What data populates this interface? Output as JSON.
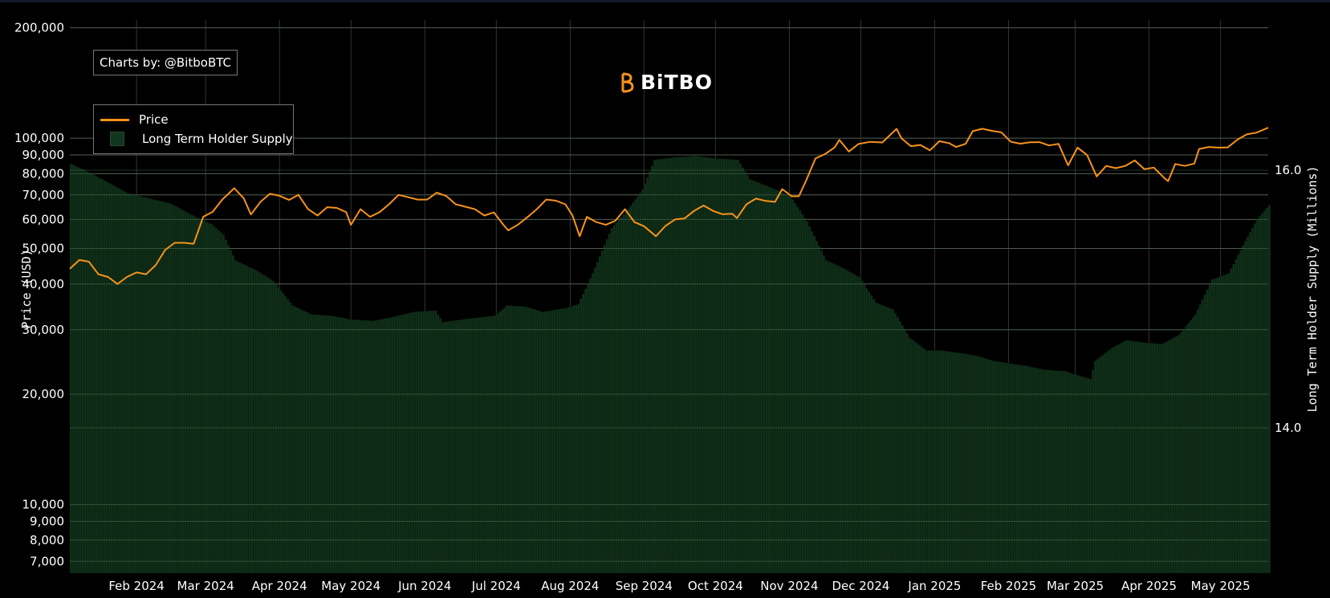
{
  "credit": "Charts by: @BitboBTC",
  "logo": {
    "text": "BiTBO",
    "color": "#f7931a"
  },
  "legend": {
    "price": "Price",
    "supply": "Long Term Holder Supply"
  },
  "colors": {
    "price": "#f7931a",
    "supply_fill": "#0f2e18",
    "grid": "#3a3a3a"
  },
  "chart_data": {
    "type": "line",
    "x_start": "2024-01-04",
    "x_end": "2025-05-21",
    "y_left": {
      "title": "Price (USD)",
      "scale": "log",
      "range": [
        6500,
        210000
      ],
      "ticks": [
        7000,
        8000,
        9000,
        10000,
        20000,
        30000,
        40000,
        50000,
        60000,
        70000,
        80000,
        90000,
        100000,
        200000
      ],
      "tick_labels": [
        "7,000",
        "8,000",
        "9,000",
        "10,000",
        "20,000",
        "30,000",
        "40,000",
        "50,000",
        "60,000",
        "70,000",
        "80,000",
        "90,000",
        "100,000",
        "200,000"
      ]
    },
    "y_right": {
      "title": "Long Term Holder Supply (Millions)",
      "ticks": [
        14.0,
        16.0
      ],
      "tick_labels": [
        "14.0",
        "16.0"
      ]
    },
    "x_ticks": [
      {
        "date": "2024-02-01",
        "label": "Feb 2024"
      },
      {
        "date": "2024-03-01",
        "label": "Mar 2024"
      },
      {
        "date": "2024-04-01",
        "label": "Apr 2024"
      },
      {
        "date": "2024-05-01",
        "label": "May 2024"
      },
      {
        "date": "2024-06-01",
        "label": "Jun 2024"
      },
      {
        "date": "2024-07-01",
        "label": "Jul 2024"
      },
      {
        "date": "2024-08-01",
        "label": "Aug 2024"
      },
      {
        "date": "2024-09-01",
        "label": "Sep 2024"
      },
      {
        "date": "2024-10-01",
        "label": "Oct 2024"
      },
      {
        "date": "2024-11-01",
        "label": "Nov 2024"
      },
      {
        "date": "2024-12-01",
        "label": "Dec 2024"
      },
      {
        "date": "2025-01-01",
        "label": "Jan 2025"
      },
      {
        "date": "2025-02-01",
        "label": "Feb 2025"
      },
      {
        "date": "2025-03-01",
        "label": "Mar 2025"
      },
      {
        "date": "2025-04-01",
        "label": "Apr 2025"
      },
      {
        "date": "2025-05-01",
        "label": "May 2025"
      }
    ],
    "series": [
      {
        "name": "Price",
        "type": "line",
        "points": [
          [
            "2024-01-04",
            44000
          ],
          [
            "2024-01-08",
            46500
          ],
          [
            "2024-01-12",
            46000
          ],
          [
            "2024-01-16",
            42500
          ],
          [
            "2024-01-20",
            41800
          ],
          [
            "2024-01-24",
            40000
          ],
          [
            "2024-01-28",
            41800
          ],
          [
            "2024-02-01",
            43000
          ],
          [
            "2024-02-05",
            42500
          ],
          [
            "2024-02-09",
            45000
          ],
          [
            "2024-02-13",
            49500
          ],
          [
            "2024-02-17",
            51800
          ],
          [
            "2024-02-21",
            51800
          ],
          [
            "2024-02-25",
            51500
          ],
          [
            "2024-02-29",
            61000
          ],
          [
            "2024-03-04",
            63000
          ],
          [
            "2024-03-08",
            68000
          ],
          [
            "2024-03-13",
            73000
          ],
          [
            "2024-03-17",
            68500
          ],
          [
            "2024-03-20",
            61900
          ],
          [
            "2024-03-24",
            67000
          ],
          [
            "2024-03-28",
            70500
          ],
          [
            "2024-04-01",
            69600
          ],
          [
            "2024-04-05",
            67800
          ],
          [
            "2024-04-09",
            70000
          ],
          [
            "2024-04-13",
            64000
          ],
          [
            "2024-04-17",
            61500
          ],
          [
            "2024-04-21",
            64800
          ],
          [
            "2024-04-25",
            64500
          ],
          [
            "2024-04-29",
            62800
          ],
          [
            "2024-05-01",
            58000
          ],
          [
            "2024-05-05",
            64000
          ],
          [
            "2024-05-09",
            61000
          ],
          [
            "2024-05-13",
            62800
          ],
          [
            "2024-05-17",
            66000
          ],
          [
            "2024-05-21",
            70000
          ],
          [
            "2024-05-25",
            69000
          ],
          [
            "2024-05-29",
            68000
          ],
          [
            "2024-06-02",
            68000
          ],
          [
            "2024-06-06",
            71000
          ],
          [
            "2024-06-10",
            69500
          ],
          [
            "2024-06-14",
            66000
          ],
          [
            "2024-06-18",
            65000
          ],
          [
            "2024-06-22",
            64000
          ],
          [
            "2024-06-26",
            61500
          ],
          [
            "2024-06-30",
            62700
          ],
          [
            "2024-07-04",
            58000
          ],
          [
            "2024-07-06",
            56000
          ],
          [
            "2024-07-10",
            58000
          ],
          [
            "2024-07-14",
            60800
          ],
          [
            "2024-07-18",
            64000
          ],
          [
            "2024-07-22",
            68000
          ],
          [
            "2024-07-26",
            67500
          ],
          [
            "2024-07-30",
            66000
          ],
          [
            "2024-08-02",
            61500
          ],
          [
            "2024-08-05",
            54000
          ],
          [
            "2024-08-08",
            61000
          ],
          [
            "2024-08-12",
            59000
          ],
          [
            "2024-08-16",
            58000
          ],
          [
            "2024-08-20",
            59500
          ],
          [
            "2024-08-24",
            64000
          ],
          [
            "2024-08-28",
            59000
          ],
          [
            "2024-09-01",
            57500
          ],
          [
            "2024-09-06",
            54000
          ],
          [
            "2024-09-10",
            57600
          ],
          [
            "2024-09-14",
            60000
          ],
          [
            "2024-09-18",
            60400
          ],
          [
            "2024-09-22",
            63300
          ],
          [
            "2024-09-26",
            65500
          ],
          [
            "2024-09-30",
            63300
          ],
          [
            "2024-10-04",
            62000
          ],
          [
            "2024-10-08",
            62200
          ],
          [
            "2024-10-10",
            60500
          ],
          [
            "2024-10-14",
            66000
          ],
          [
            "2024-10-18",
            68400
          ],
          [
            "2024-10-22",
            67400
          ],
          [
            "2024-10-26",
            67000
          ],
          [
            "2024-10-29",
            72600
          ],
          [
            "2024-11-02",
            69400
          ],
          [
            "2024-11-05",
            69400
          ],
          [
            "2024-11-08",
            76500
          ],
          [
            "2024-11-12",
            88000
          ],
          [
            "2024-11-16",
            90500
          ],
          [
            "2024-11-20",
            94300
          ],
          [
            "2024-11-22",
            98900
          ],
          [
            "2024-11-26",
            91900
          ],
          [
            "2024-11-30",
            96400
          ],
          [
            "2024-12-05",
            97700
          ],
          [
            "2024-12-10",
            97300
          ],
          [
            "2024-12-16",
            106000
          ],
          [
            "2024-12-18",
            100000
          ],
          [
            "2024-12-22",
            95100
          ],
          [
            "2024-12-26",
            95800
          ],
          [
            "2024-12-30",
            92600
          ],
          [
            "2025-01-03",
            98100
          ],
          [
            "2025-01-07",
            96900
          ],
          [
            "2025-01-10",
            94600
          ],
          [
            "2025-01-14",
            96500
          ],
          [
            "2025-01-17",
            104500
          ],
          [
            "2025-01-21",
            106100
          ],
          [
            "2025-01-25",
            104700
          ],
          [
            "2025-01-29",
            103700
          ],
          [
            "2025-02-02",
            97700
          ],
          [
            "2025-02-06",
            96600
          ],
          [
            "2025-02-10",
            97400
          ],
          [
            "2025-02-14",
            97500
          ],
          [
            "2025-02-18",
            95500
          ],
          [
            "2025-02-22",
            96500
          ],
          [
            "2025-02-26",
            84300
          ],
          [
            "2025-03-02",
            94200
          ],
          [
            "2025-03-06",
            89900
          ],
          [
            "2025-03-10",
            78600
          ],
          [
            "2025-03-14",
            84000
          ],
          [
            "2025-03-18",
            82800
          ],
          [
            "2025-03-22",
            84000
          ],
          [
            "2025-03-26",
            86900
          ],
          [
            "2025-03-30",
            82300
          ],
          [
            "2025-04-03",
            83100
          ],
          [
            "2025-04-07",
            78300
          ],
          [
            "2025-04-09",
            76300
          ],
          [
            "2025-04-12",
            85000
          ],
          [
            "2025-04-16",
            84000
          ],
          [
            "2025-04-20",
            85200
          ],
          [
            "2025-04-22",
            93400
          ],
          [
            "2025-04-26",
            94600
          ],
          [
            "2025-04-30",
            94200
          ],
          [
            "2025-05-04",
            94300
          ],
          [
            "2025-05-08",
            99000
          ],
          [
            "2025-05-12",
            102400
          ],
          [
            "2025-05-16",
            103500
          ],
          [
            "2025-05-21",
            106800
          ]
        ]
      },
      {
        "name": "Long Term Holder Supply",
        "type": "area",
        "points": [
          [
            "2024-01-04",
            16.05
          ],
          [
            "2024-01-12",
            15.98
          ],
          [
            "2024-01-20",
            15.9
          ],
          [
            "2024-01-28",
            15.82
          ],
          [
            "2024-02-06",
            15.78
          ],
          [
            "2024-02-15",
            15.74
          ],
          [
            "2024-02-24",
            15.65
          ],
          [
            "2024-03-03",
            15.58
          ],
          [
            "2024-03-08",
            15.5
          ],
          [
            "2024-03-13",
            15.3
          ],
          [
            "2024-03-22",
            15.22
          ],
          [
            "2024-03-29",
            15.14
          ],
          [
            "2024-04-06",
            14.95
          ],
          [
            "2024-04-14",
            14.88
          ],
          [
            "2024-04-22",
            14.87
          ],
          [
            "2024-05-01",
            14.84
          ],
          [
            "2024-05-10",
            14.83
          ],
          [
            "2024-05-18",
            14.86
          ],
          [
            "2024-05-27",
            14.9
          ],
          [
            "2024-06-05",
            14.91
          ],
          [
            "2024-06-08",
            14.82
          ],
          [
            "2024-06-20",
            14.85
          ],
          [
            "2024-06-30",
            14.87
          ],
          [
            "2024-07-05",
            14.95
          ],
          [
            "2024-07-13",
            14.94
          ],
          [
            "2024-07-20",
            14.9
          ],
          [
            "2024-07-30",
            14.93
          ],
          [
            "2024-08-04",
            14.96
          ],
          [
            "2024-08-10",
            15.2
          ],
          [
            "2024-08-18",
            15.55
          ],
          [
            "2024-08-25",
            15.7
          ],
          [
            "2024-08-31",
            15.85
          ],
          [
            "2024-09-05",
            16.08
          ],
          [
            "2024-09-14",
            16.1
          ],
          [
            "2024-09-22",
            16.11
          ],
          [
            "2024-10-01",
            16.09
          ],
          [
            "2024-10-10",
            16.08
          ],
          [
            "2024-10-15",
            15.93
          ],
          [
            "2024-10-23",
            15.87
          ],
          [
            "2024-11-01",
            15.8
          ],
          [
            "2024-11-08",
            15.6
          ],
          [
            "2024-11-16",
            15.3
          ],
          [
            "2024-11-22",
            15.25
          ],
          [
            "2024-11-30",
            15.17
          ],
          [
            "2024-12-07",
            14.97
          ],
          [
            "2024-12-14",
            14.92
          ],
          [
            "2024-12-21",
            14.7
          ],
          [
            "2024-12-28",
            14.6
          ],
          [
            "2025-01-04",
            14.6
          ],
          [
            "2025-01-11",
            14.58
          ],
          [
            "2025-01-18",
            14.56
          ],
          [
            "2025-01-25",
            14.52
          ],
          [
            "2025-02-01",
            14.5
          ],
          [
            "2025-02-08",
            14.48
          ],
          [
            "2025-02-16",
            14.45
          ],
          [
            "2025-02-24",
            14.44
          ],
          [
            "2025-03-03",
            14.4
          ],
          [
            "2025-03-07",
            14.38
          ],
          [
            "2025-03-09",
            14.52
          ],
          [
            "2025-03-16",
            14.62
          ],
          [
            "2025-03-22",
            14.68
          ],
          [
            "2025-03-30",
            14.66
          ],
          [
            "2025-04-06",
            14.65
          ],
          [
            "2025-04-13",
            14.72
          ],
          [
            "2025-04-20",
            14.88
          ],
          [
            "2025-04-27",
            15.15
          ],
          [
            "2025-05-04",
            15.2
          ],
          [
            "2025-05-11",
            15.45
          ],
          [
            "2025-05-16",
            15.62
          ],
          [
            "2025-05-21",
            15.73
          ]
        ]
      }
    ]
  }
}
